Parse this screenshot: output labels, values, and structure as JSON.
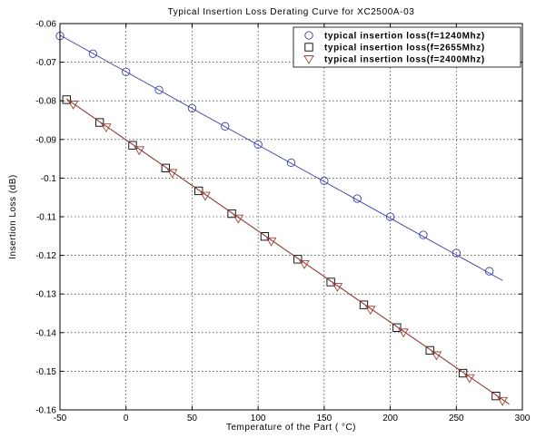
{
  "chart_data": {
    "type": "line",
    "title": "Typical Insertion Loss Derating Curve for XC2500A-03",
    "xlabel": "Temperature of the Part ( °C)",
    "ylabel": "Insertion Loss (dB)",
    "xlim": [
      -50,
      300
    ],
    "ylim": [
      -0.16,
      -0.06
    ],
    "xticks": [
      -50,
      0,
      50,
      100,
      150,
      200,
      250,
      300
    ],
    "xtick_labels": [
      "-50",
      "0",
      "50",
      "100",
      "150",
      "200",
      "250",
      "300"
    ],
    "yticks": [
      -0.16,
      -0.15,
      -0.14,
      -0.13,
      -0.12,
      -0.11,
      -0.1,
      -0.09,
      -0.08,
      -0.07,
      -0.06
    ],
    "ytick_labels": [
      "-0.16",
      "-0.15",
      "-0.14",
      "-0.13",
      "-0.12",
      "-0.11",
      "-0.1",
      "-0.09",
      "-0.08",
      "-0.07",
      "-0.06"
    ],
    "grid": true,
    "legend_position": "top-right",
    "series": [
      {
        "name": "typical insertion loss(f=1240Mhz)",
        "marker": "circle",
        "color": "#3b3fa8",
        "line": {
          "x": [
            -50,
            285
          ],
          "y": [
            -0.063,
            -0.1265
          ]
        },
        "x": [
          -50,
          -25,
          0,
          25,
          50,
          75,
          100,
          125,
          150,
          175,
          200,
          225,
          250,
          275
        ],
        "y": [
          -0.0632,
          -0.0678,
          -0.0725,
          -0.0772,
          -0.0819,
          -0.0866,
          -0.0913,
          -0.096,
          -0.1007,
          -0.1053,
          -0.11,
          -0.1147,
          -0.1194,
          -0.1241
        ]
      },
      {
        "name": "typical insertion loss(f=2655Mhz)",
        "marker": "square",
        "color": "#000000",
        "line": {
          "x": [
            -45,
            290
          ],
          "y": [
            -0.0795,
            -0.1585
          ]
        },
        "x": [
          -45,
          -20,
          5,
          30,
          55,
          80,
          105,
          130,
          155,
          180,
          205,
          230,
          255,
          280
        ],
        "y": [
          -0.0797,
          -0.0856,
          -0.0915,
          -0.0974,
          -0.1033,
          -0.1092,
          -0.1151,
          -0.121,
          -0.1269,
          -0.1328,
          -0.1387,
          -0.1446,
          -0.1505,
          -0.1564
        ]
      },
      {
        "name": "typical insertion loss(f=2400Mhz)",
        "marker": "triangle-down",
        "color": "#a0403a",
        "line": {
          "x": [
            -45,
            290
          ],
          "y": [
            -0.0795,
            -0.1585
          ]
        },
        "x": [
          -40,
          -15,
          10,
          35,
          60,
          85,
          110,
          135,
          160,
          185,
          210,
          235,
          260,
          285
        ],
        "y": [
          -0.0809,
          -0.0868,
          -0.0927,
          -0.0986,
          -0.1045,
          -0.1104,
          -0.1163,
          -0.1222,
          -0.1281,
          -0.134,
          -0.1399,
          -0.1458,
          -0.1517,
          -0.1576
        ]
      }
    ]
  }
}
